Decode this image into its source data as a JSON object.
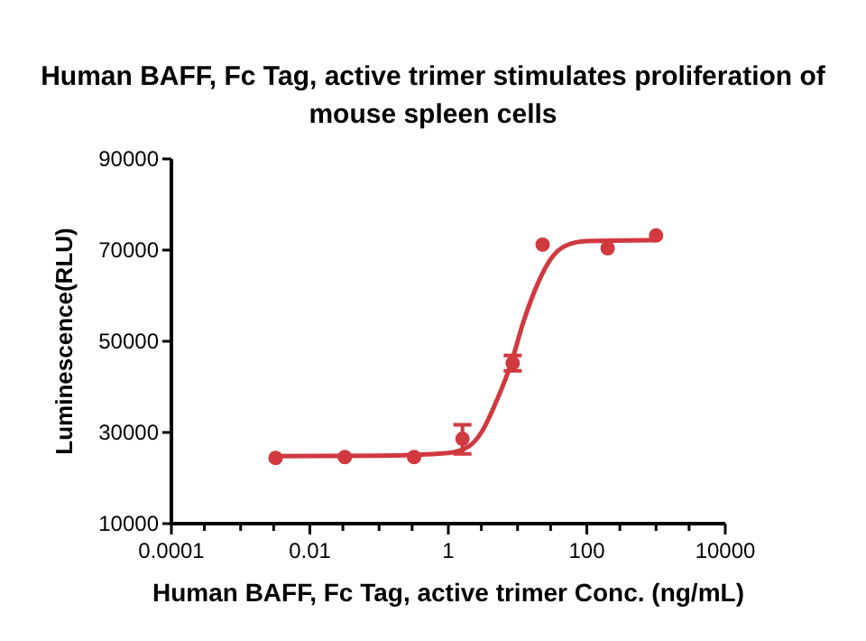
{
  "chart_data": {
    "type": "scatter",
    "title": "Human BAFF, Fc Tag, active trimer stimulates proliferation of mouse spleen cells",
    "xlabel": "Human BAFF, Fc Tag, active trimer Conc. (ng/mL)",
    "ylabel": "Luminescence(RLU)",
    "log": "x",
    "grid": false,
    "xlim": [
      0.0001,
      10000
    ],
    "xticks": [
      0.0001,
      {
        "value": 0.0003,
        "label": null
      },
      {
        "value": 0.001,
        "label": null
      },
      {
        "value": 0.003,
        "label": null
      },
      0.01,
      {
        "value": 0.03,
        "label": null
      },
      {
        "value": 0.1,
        "label": null
      },
      {
        "value": 0.3,
        "label": null
      },
      1,
      {
        "value": 3,
        "label": null
      },
      {
        "value": 10,
        "label": null
      },
      {
        "value": 30,
        "label": null
      },
      100,
      {
        "value": 300,
        "label": null
      },
      {
        "value": 1000,
        "label": null
      },
      {
        "value": 3000,
        "label": null
      },
      10000
    ],
    "ylim": [
      10000,
      90000
    ],
    "yticks": [
      10000,
      30000,
      50000,
      70000,
      90000
    ],
    "series": [
      {
        "type": "line",
        "color": "#d0393f",
        "marker": "none",
        "line_style": "solid",
        "x": [
          0.003,
          0.1,
          1,
          2,
          3,
          5,
          8,
          12,
          20,
          30,
          50,
          100,
          1000
        ],
        "values": [
          24800,
          24900,
          25500,
          27000,
          30000,
          37000,
          45000,
          54000,
          63000,
          68000,
          71000,
          72000,
          72200
        ]
      },
      {
        "color": "#d0393f",
        "marker": "circle",
        "x": [
          0.0032,
          0.032,
          0.32,
          1.6,
          8.5,
          23,
          200,
          1000
        ],
        "values": [
          24400,
          24600,
          24600,
          28600,
          45200,
          71200,
          70400,
          73200
        ],
        "errors": [
          null,
          null,
          null,
          [
            25300,
            31700
          ],
          [
            43500,
            46900
          ],
          null,
          null,
          null
        ]
      }
    ]
  }
}
